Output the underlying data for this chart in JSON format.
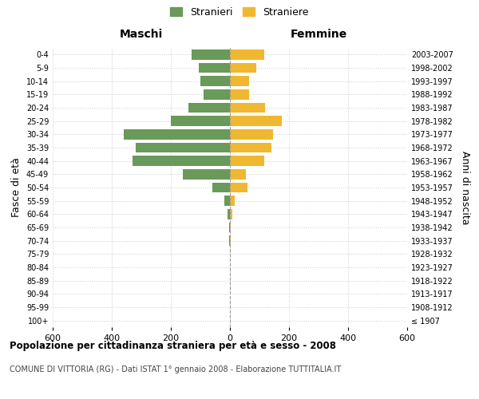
{
  "age_groups": [
    "100+",
    "95-99",
    "90-94",
    "85-89",
    "80-84",
    "75-79",
    "70-74",
    "65-69",
    "60-64",
    "55-59",
    "50-54",
    "45-49",
    "40-44",
    "35-39",
    "30-34",
    "25-29",
    "20-24",
    "15-19",
    "10-14",
    "5-9",
    "0-4"
  ],
  "birth_years": [
    "≤ 1907",
    "1908-1912",
    "1913-1917",
    "1918-1922",
    "1923-1927",
    "1928-1932",
    "1933-1937",
    "1938-1942",
    "1943-1947",
    "1948-1952",
    "1953-1957",
    "1958-1962",
    "1963-1967",
    "1968-1972",
    "1973-1977",
    "1978-1982",
    "1983-1987",
    "1988-1992",
    "1993-1997",
    "1998-2002",
    "2003-2007"
  ],
  "males": [
    0,
    0,
    0,
    0,
    0,
    0,
    2,
    3,
    8,
    20,
    60,
    160,
    330,
    320,
    360,
    200,
    140,
    90,
    100,
    105,
    130
  ],
  "females": [
    0,
    0,
    0,
    0,
    0,
    0,
    2,
    3,
    8,
    15,
    60,
    55,
    115,
    140,
    145,
    175,
    120,
    65,
    65,
    90,
    115
  ],
  "male_color": "#6a9a5a",
  "female_color": "#f0b830",
  "xlim": 600,
  "title": "Popolazione per cittadinanza straniera per età e sesso - 2008",
  "subtitle": "COMUNE DI VITTORIA (RG) - Dati ISTAT 1° gennaio 2008 - Elaborazione TUTTITALIA.IT",
  "ylabel_left": "Fasce di età",
  "ylabel_right": "Anni di nascita",
  "legend_male": "Stranieri",
  "legend_female": "Straniere",
  "maschi_label": "Maschi",
  "femmine_label": "Femmine",
  "bg_color": "#ffffff",
  "grid_color": "#cccccc"
}
